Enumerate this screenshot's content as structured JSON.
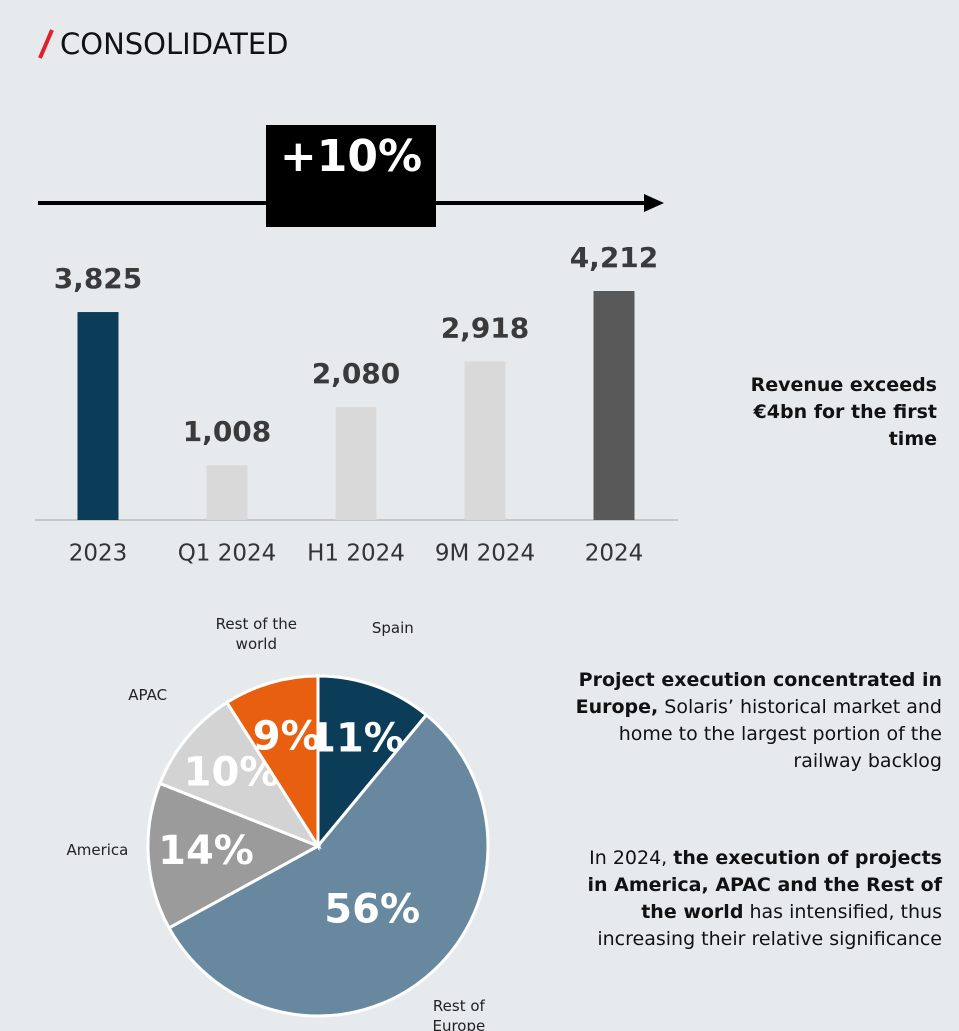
{
  "title": "CONSOLIDATED",
  "chart_data": [
    {
      "type": "bar",
      "annotation": "+10%",
      "categories": [
        "2023",
        "Q1 2024",
        "H1 2024",
        "9M 2024",
        "2024"
      ],
      "values": [
        3825,
        1008,
        2080,
        2918,
        4212
      ],
      "value_labels": [
        "3,825",
        "1,008",
        "2,080",
        "2,918",
        "4,212"
      ],
      "colors": [
        "#0b3d58",
        "#d9d9d9",
        "#d9d9d9",
        "#d9d9d9",
        "#595959"
      ]
    },
    {
      "type": "pie",
      "categories": [
        "Spain",
        "Rest of Europe",
        "America",
        "APAC",
        "Rest of the world"
      ],
      "values": [
        11,
        56,
        14,
        10,
        9
      ],
      "value_labels": [
        "11%",
        "56%",
        "14%",
        "10%",
        "9%"
      ],
      "colors": [
        "#0b3d58",
        "#68889f",
        "#9b9b9b",
        "#d3d3d3",
        "#e8600f"
      ]
    }
  ],
  "notes": [
    {
      "parts": [
        {
          "text": "Revenue exceeds €4bn for the first time",
          "bold": true
        }
      ]
    },
    {
      "parts": [
        {
          "text": "Project execution concentrated in Europe,",
          "bold": true
        },
        {
          "text": " Solaris’ historical market and home to the largest portion of the railway backlog",
          "bold": false
        }
      ]
    },
    {
      "parts": [
        {
          "text": "In 2024, ",
          "bold": false
        },
        {
          "text": "the execution of projects in America, APAC and the Rest of the world",
          "bold": true
        },
        {
          "text": " has intensified, thus increasing their relative significance",
          "bold": false
        }
      ]
    }
  ]
}
